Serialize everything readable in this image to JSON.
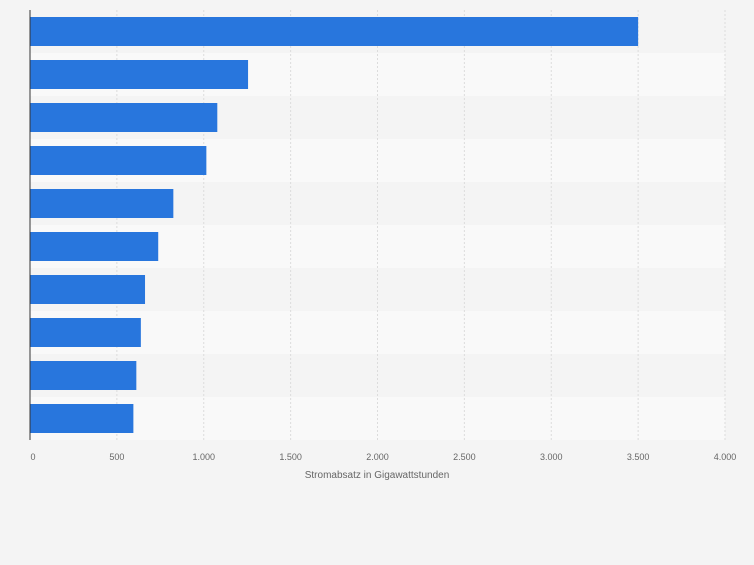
{
  "chart_data": {
    "type": "bar",
    "orientation": "horizontal",
    "categories": [
      "",
      "",
      "",
      "",
      "",
      "",
      "",
      "",
      "",
      ""
    ],
    "values": [
      3500,
      1255,
      1078,
      1015,
      825,
      738,
      662,
      638,
      612,
      595
    ],
    "title": "",
    "xlabel": "Stromabsatz in Gigawattstunden",
    "ylabel": "",
    "xlim": [
      0,
      4000
    ],
    "ticks": [
      0,
      500,
      1000,
      1500,
      2000,
      2500,
      3000,
      3500,
      4000
    ],
    "tick_labels": [
      "0",
      "500",
      "1.000",
      "1.500",
      "2.000",
      "2.500",
      "3.000",
      "3.500",
      "4.000"
    ],
    "grid": true,
    "legend": "none",
    "colors": {
      "bar": "#2876dd",
      "background": "#f4f4f4",
      "band_light": "#f9f9f9",
      "band_dark": "#f4f4f4",
      "grid": "#dcdcdc",
      "axis": "#333333",
      "text": "#666666"
    }
  }
}
